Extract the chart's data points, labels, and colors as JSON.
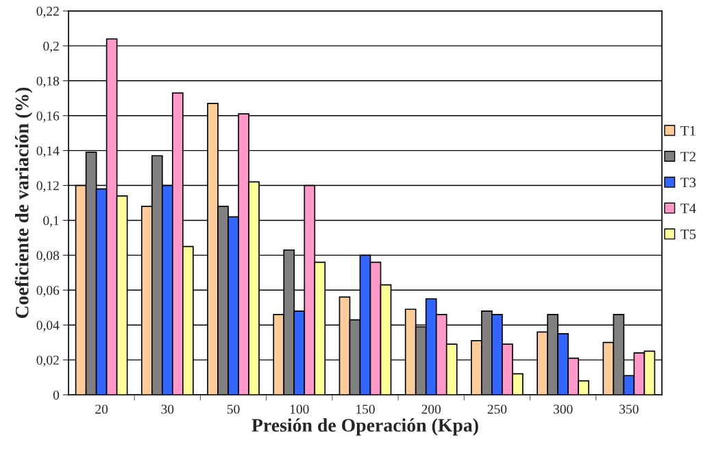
{
  "chart_data": {
    "type": "bar",
    "xlabel": "Presión de Operación (Kpa)",
    "ylabel": "Coeficiente de variación (%)",
    "categories": [
      "20",
      "30",
      "50",
      "100",
      "150",
      "200",
      "250",
      "300",
      "350"
    ],
    "series": [
      {
        "name": "T1",
        "color": "#ffcc99",
        "values": [
          0.12,
          0.108,
          0.167,
          0.046,
          0.056,
          0.049,
          0.031,
          0.036,
          0.03
        ]
      },
      {
        "name": "T2",
        "color": "#808080",
        "values": [
          0.139,
          0.137,
          0.108,
          0.083,
          0.043,
          0.039,
          0.048,
          0.046,
          0.046
        ]
      },
      {
        "name": "T3",
        "color": "#3366ff",
        "values": [
          0.118,
          0.12,
          0.102,
          0.048,
          0.08,
          0.055,
          0.046,
          0.035,
          0.011
        ]
      },
      {
        "name": "T4",
        "color": "#ff99cc",
        "values": [
          0.204,
          0.173,
          0.161,
          0.12,
          0.076,
          0.046,
          0.029,
          0.021,
          0.024
        ]
      },
      {
        "name": "T5",
        "color": "#ffff99",
        "values": [
          0.114,
          0.085,
          0.122,
          0.076,
          0.063,
          0.029,
          0.012,
          0.008,
          0.025
        ]
      }
    ],
    "ylim": [
      0,
      0.22
    ],
    "yticks": [
      {
        "value": 0,
        "label": "0"
      },
      {
        "value": 0.02,
        "label": "0,02"
      },
      {
        "value": 0.04,
        "label": "0,04"
      },
      {
        "value": 0.06,
        "label": "0,06"
      },
      {
        "value": 0.08,
        "label": "0,08"
      },
      {
        "value": 0.1,
        "label": "0,1"
      },
      {
        "value": 0.12,
        "label": "0,12"
      },
      {
        "value": 0.14,
        "label": "0,14"
      },
      {
        "value": 0.16,
        "label": "0,16"
      },
      {
        "value": 0.18,
        "label": "0,18"
      },
      {
        "value": 0.2,
        "label": "0,2"
      },
      {
        "value": 0.22,
        "label": "0,22"
      }
    ],
    "grid": "y",
    "legend": "right"
  }
}
